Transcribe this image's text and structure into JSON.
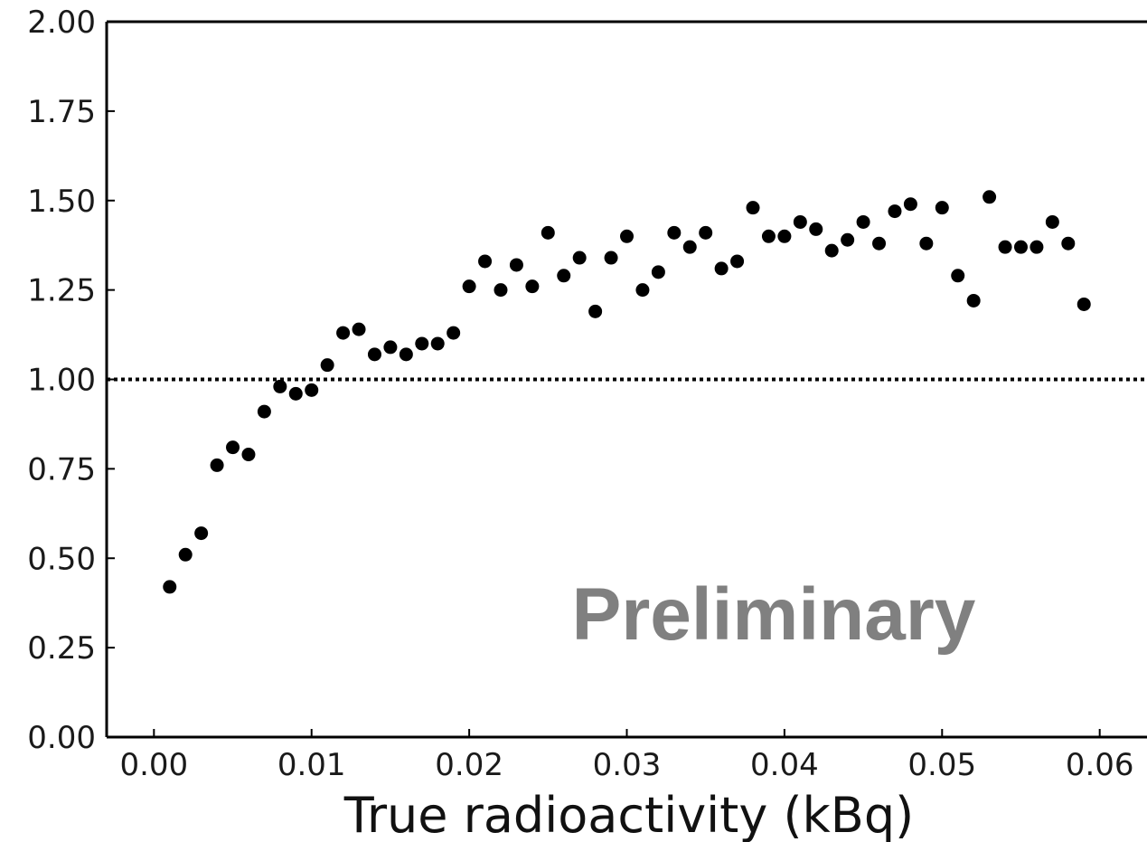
{
  "chart_data": {
    "type": "scatter",
    "xlabel": "True radioactivity (kBq)",
    "ylabel": "",
    "title": "",
    "xlim": [
      -0.003,
      0.063
    ],
    "ylim": [
      0.0,
      2.0
    ],
    "x_ticks": [
      "0.00",
      "0.01",
      "0.02",
      "0.03",
      "0.04",
      "0.05",
      "0.06"
    ],
    "y_ticks": [
      "0.00",
      "0.25",
      "0.50",
      "0.75",
      "1.00",
      "1.25",
      "1.50",
      "1.75",
      "2.00"
    ],
    "reference_line": {
      "y": 1.0,
      "style": "dotted"
    },
    "grid": false,
    "watermark": "Preliminary",
    "colors": {
      "points": "#000000",
      "axes": "#000000",
      "watermark": "#808080",
      "reference_line": "#000000"
    },
    "series": [
      {
        "x": [
          0.001,
          0.002,
          0.003,
          0.004,
          0.005,
          0.006,
          0.007,
          0.008,
          0.009,
          0.01,
          0.011,
          0.012,
          0.013,
          0.014,
          0.015,
          0.016,
          0.017,
          0.018,
          0.019,
          0.02,
          0.021,
          0.022,
          0.023,
          0.024,
          0.025,
          0.026,
          0.027,
          0.028,
          0.029,
          0.03,
          0.031,
          0.032,
          0.033,
          0.034,
          0.035,
          0.036,
          0.037,
          0.038,
          0.039,
          0.04,
          0.041,
          0.042,
          0.043,
          0.044,
          0.045,
          0.046,
          0.047,
          0.048,
          0.049,
          0.05,
          0.051,
          0.052,
          0.053,
          0.054,
          0.055,
          0.056,
          0.057,
          0.058,
          0.059
        ],
        "y": [
          0.42,
          0.51,
          0.57,
          0.76,
          0.81,
          0.79,
          0.91,
          0.98,
          0.96,
          0.97,
          1.04,
          1.13,
          1.14,
          1.07,
          1.09,
          1.07,
          1.1,
          1.1,
          1.13,
          1.26,
          1.33,
          1.25,
          1.32,
          1.26,
          1.41,
          1.29,
          1.34,
          1.19,
          1.34,
          1.4,
          1.25,
          1.3,
          1.41,
          1.37,
          1.41,
          1.31,
          1.33,
          1.48,
          1.4,
          1.4,
          1.44,
          1.42,
          1.36,
          1.39,
          1.44,
          1.38,
          1.47,
          1.49,
          1.38,
          1.48,
          1.29,
          1.22,
          1.51,
          1.37,
          1.37,
          1.37,
          1.44,
          1.38,
          1.21
        ]
      }
    ]
  }
}
